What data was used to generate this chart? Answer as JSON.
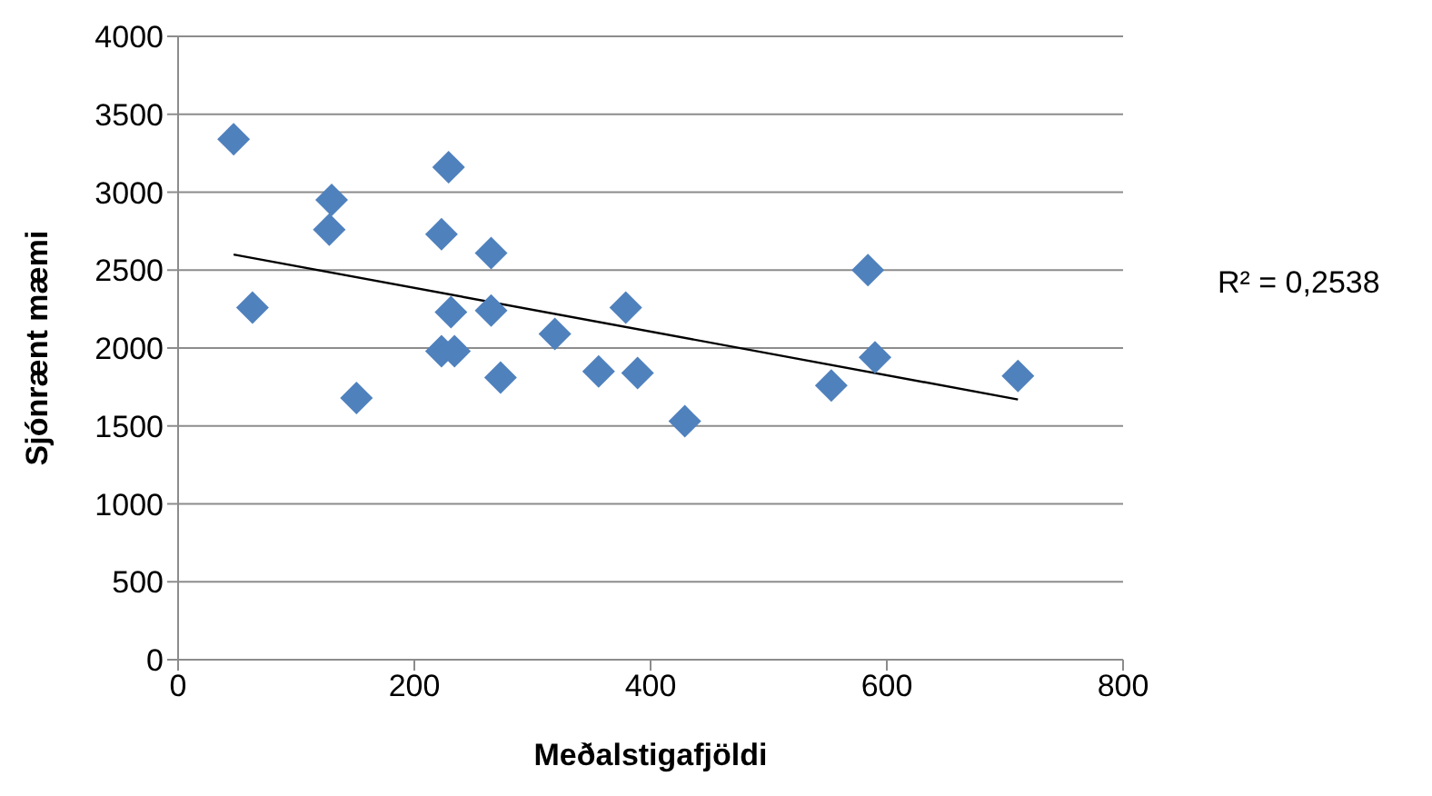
{
  "chart_data": {
    "type": "scatter",
    "xlabel": "Meðalstigafjöldi",
    "ylabel": "Sjónrænt mæmi",
    "series": [
      {
        "color": "#4f81bd",
        "marker": "diamond",
        "x": [
          47,
          229,
          130,
          128,
          223,
          265,
          63,
          231,
          265,
          223,
          234,
          151,
          273,
          319,
          356,
          389,
          379,
          429,
          553,
          584,
          590,
          711
        ],
        "values": [
          3340,
          3160,
          2950,
          2760,
          2730,
          2610,
          2260,
          2230,
          2240,
          1980,
          1980,
          1680,
          1810,
          2090,
          1850,
          1840,
          2260,
          1530,
          1760,
          2500,
          1940,
          1820
        ]
      },
      {
        "type": "line",
        "color": "#000000",
        "marker": "none",
        "x": [
          47,
          711
        ],
        "values": [
          2600,
          1670
        ]
      }
    ],
    "xlim": [
      0,
      800
    ],
    "xticks": [
      0,
      200,
      400,
      600,
      800
    ],
    "ylim": [
      0,
      4000
    ],
    "yticks": [
      0,
      500,
      1000,
      1500,
      2000,
      2500,
      3000,
      3500,
      4000
    ],
    "grid": "y",
    "legend": false,
    "annotations": [
      "R² = 0,2538"
    ]
  }
}
